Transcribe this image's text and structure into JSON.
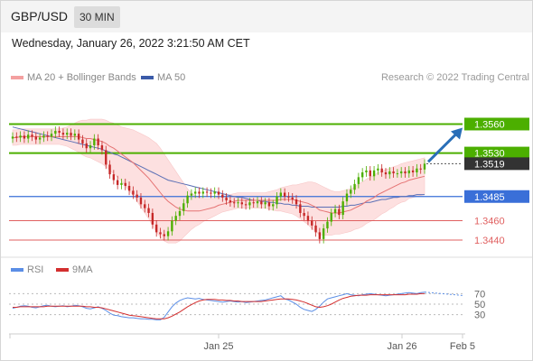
{
  "header": {
    "symbol": "GBP/USD",
    "timeframe": "30 MIN"
  },
  "datetime": "Wednesday, January 26, 2022 3:21:50 AM CET",
  "legend": {
    "ma20": "MA 20 + Bollinger Bands",
    "ma50": "MA 50",
    "attribution": "Research © 2022 Trading Central",
    "rsi": "RSI",
    "rsi_ma": "9MA"
  },
  "colors": {
    "ma20": "#e57373",
    "bollinger_fill": "#fde0e0",
    "ma50": "#5b6fb5",
    "resistance": "#4caf00",
    "support_blue": "#3a6fd8",
    "support_red": "#e06060",
    "current": "#333333",
    "up_candle": "#4caf00",
    "down_candle": "#c62828",
    "arrow": "#2a6fb8",
    "rsi": "#5b8ee6",
    "rsi_ma": "#d32f2f"
  },
  "chart_data": [
    {
      "type": "candlestick",
      "ylim": [
        1.3425,
        1.3595
      ],
      "levels": [
        {
          "label": "1.3560",
          "value": 1.356,
          "kind": "resistance"
        },
        {
          "label": "1.3530",
          "value": 1.353,
          "kind": "resistance"
        },
        {
          "label": "1.3519",
          "value": 1.3519,
          "kind": "current"
        },
        {
          "label": "1.3485",
          "value": 1.3485,
          "kind": "pivot"
        },
        {
          "label": "1.3460",
          "value": 1.346,
          "kind": "support"
        },
        {
          "label": "1.3440",
          "value": 1.344,
          "kind": "support"
        }
      ],
      "x_ticks": [
        "Jan 25",
        "Jan 26",
        "Feb 5"
      ],
      "closes": [
        1.3547,
        1.3546,
        1.3548,
        1.3545,
        1.3549,
        1.3547,
        1.3544,
        1.3546,
        1.3548,
        1.3547,
        1.355,
        1.3553,
        1.3551,
        1.3549,
        1.3551,
        1.3548,
        1.355,
        1.3544,
        1.354,
        1.3535,
        1.3538,
        1.3545,
        1.3538,
        1.3533,
        1.3518,
        1.3508,
        1.3502,
        1.3497,
        1.3499,
        1.3496,
        1.3491,
        1.3487,
        1.3484,
        1.3477,
        1.3473,
        1.3468,
        1.3456,
        1.3448,
        1.3446,
        1.3444,
        1.3449,
        1.346,
        1.3465,
        1.347,
        1.3478,
        1.3486,
        1.3488,
        1.349,
        1.3488,
        1.349,
        1.3489,
        1.3488,
        1.349,
        1.3487,
        1.3484,
        1.3481,
        1.3479,
        1.3478,
        1.3479,
        1.3477,
        1.3476,
        1.3479,
        1.3478,
        1.348,
        1.3477,
        1.3479,
        1.3475,
        1.3477,
        1.3485,
        1.3489,
        1.3485,
        1.3484,
        1.3482,
        1.3477,
        1.3468,
        1.3465,
        1.346,
        1.3455,
        1.3448,
        1.3441,
        1.3452,
        1.3459,
        1.3468,
        1.3472,
        1.3466,
        1.348,
        1.3488,
        1.3492,
        1.3498,
        1.3505,
        1.351,
        1.3512,
        1.3506,
        1.3512,
        1.3514,
        1.351,
        1.3508,
        1.3511,
        1.3509,
        1.3509,
        1.3511,
        1.3509,
        1.3512,
        1.351,
        1.3514,
        1.3513,
        1.3519
      ],
      "ma20": [
        1.3546,
        1.3546,
        1.3547,
        1.3547,
        1.3547,
        1.3547,
        1.3547,
        1.3547,
        1.3547,
        1.3547,
        1.3547,
        1.3547,
        1.3547,
        1.3547,
        1.3547,
        1.3547,
        1.3547,
        1.3547,
        1.3546,
        1.3545,
        1.3545,
        1.3544,
        1.3543,
        1.3542,
        1.354,
        1.3537,
        1.3535,
        1.3532,
        1.3529,
        1.3526,
        1.3523,
        1.352,
        1.3516,
        1.3512,
        1.3508,
        1.3504,
        1.3499,
        1.3494,
        1.3489,
        1.3484,
        1.348,
        1.3477,
        1.3474,
        1.3472,
        1.3471,
        1.347,
        1.347,
        1.347,
        1.347,
        1.3471,
        1.3472,
        1.3473,
        1.3474,
        1.3476,
        1.3477,
        1.3478,
        1.3479,
        1.348,
        1.3481,
        1.3481,
        1.3481,
        1.3481,
        1.3481,
        1.3481,
        1.3481,
        1.3481,
        1.3481,
        1.3481,
        1.3481,
        1.3482,
        1.3482,
        1.3482,
        1.3482,
        1.3481,
        1.348,
        1.3479,
        1.3478,
        1.3476,
        1.3474,
        1.3471,
        1.347,
        1.3469,
        1.3468,
        1.3468,
        1.3468,
        1.3469,
        1.347,
        1.3471,
        1.3473,
        1.3475,
        1.3477,
        1.348,
        1.3482,
        1.3484,
        1.3487,
        1.3489,
        1.3491,
        1.3493,
        1.3495,
        1.3497,
        1.3499,
        1.35,
        1.3502,
        1.3503,
        1.3504,
        1.3505,
        1.3506
      ],
      "ma50": [
        1.3557,
        1.3556,
        1.3555,
        1.3554,
        1.3553,
        1.3552,
        1.3551,
        1.355,
        1.3549,
        1.3548,
        1.3547,
        1.3546,
        1.3545,
        1.3544,
        1.3543,
        1.3542,
        1.3541,
        1.354,
        1.3539,
        1.3538,
        1.3537,
        1.3536,
        1.3535,
        1.3534,
        1.3532,
        1.3531,
        1.3529,
        1.3528,
        1.3526,
        1.3524,
        1.3522,
        1.352,
        1.3518,
        1.3516,
        1.3514,
        1.3512,
        1.351,
        1.3508,
        1.3506,
        1.3504,
        1.3502,
        1.3501,
        1.35,
        1.3499,
        1.3498,
        1.3497,
        1.3496,
        1.3495,
        1.3494,
        1.3493,
        1.3492,
        1.3491,
        1.349,
        1.3489,
        1.3488,
        1.3487,
        1.3486,
        1.3485,
        1.3484,
        1.3484,
        1.3483,
        1.3482,
        1.3481,
        1.3481,
        1.348,
        1.348,
        1.3479,
        1.3479,
        1.3478,
        1.3478,
        1.3477,
        1.3477,
        1.3476,
        1.3476,
        1.3475,
        1.3475,
        1.3475,
        1.3474,
        1.3474,
        1.3474,
        1.3474,
        1.3474,
        1.3474,
        1.3474,
        1.3474,
        1.3475,
        1.3475,
        1.3476,
        1.3476,
        1.3477,
        1.3478,
        1.3479,
        1.3479,
        1.348,
        1.3481,
        1.3482,
        1.3482,
        1.3483,
        1.3484,
        1.3484,
        1.3485,
        1.3485,
        1.3486,
        1.3486,
        1.3487,
        1.3487,
        1.3487
      ],
      "bollinger_width": [
        0.0008,
        0.0008,
        0.0008,
        0.0008,
        0.0008,
        0.0008,
        0.0008,
        0.0008,
        0.0008,
        0.0008,
        0.0008,
        0.0008,
        0.0008,
        0.0009,
        0.001,
        0.0012,
        0.0014,
        0.0016,
        0.0018,
        0.0019,
        0.002,
        0.0021,
        0.0022,
        0.0023,
        0.0024,
        0.0025,
        0.0026,
        0.0027,
        0.0028,
        0.003,
        0.0032,
        0.0034,
        0.0036,
        0.0038,
        0.004,
        0.0042,
        0.0044,
        0.0046,
        0.0046,
        0.0045,
        0.0043,
        0.004,
        0.0037,
        0.0033,
        0.0028,
        0.0023,
        0.0019,
        0.0016,
        0.0014,
        0.0012,
        0.0011,
        0.001,
        0.0009,
        0.0009,
        0.0008,
        0.0008,
        0.0008,
        0.0008,
        0.0008,
        0.0008,
        0.0008,
        0.0008,
        0.0008,
        0.0008,
        0.0008,
        0.0008,
        0.0009,
        0.001,
        0.0011,
        0.0012,
        0.0013,
        0.0014,
        0.0015,
        0.0016,
        0.0018,
        0.002,
        0.0022,
        0.0024,
        0.0025,
        0.0026,
        0.0025,
        0.0024,
        0.0023,
        0.0022,
        0.0022,
        0.0022,
        0.0022,
        0.0022,
        0.0022,
        0.0023,
        0.0023,
        0.0023,
        0.0023,
        0.0023,
        0.0023,
        0.0022,
        0.0022,
        0.0021,
        0.0021,
        0.002,
        0.002,
        0.002,
        0.0019,
        0.0019,
        0.0019,
        0.0019,
        0.0019
      ]
    },
    {
      "type": "line",
      "series": [
        {
          "name": "RSI",
          "values": [
            42,
            44,
            46,
            47,
            46,
            44,
            43,
            45,
            47,
            48,
            46,
            45,
            46,
            47,
            45,
            46,
            48,
            47,
            45,
            42,
            41,
            43,
            45,
            42,
            38,
            33,
            29,
            28,
            26,
            25,
            24,
            24,
            23,
            22,
            22,
            21,
            21,
            20,
            20,
            25,
            35,
            45,
            52,
            57,
            60,
            62,
            61,
            60,
            61,
            59,
            58,
            57,
            56,
            55,
            54,
            55,
            56,
            55,
            54,
            55,
            53,
            54,
            55,
            56,
            57,
            58,
            60,
            62,
            64,
            66,
            60,
            58,
            54,
            50,
            44,
            40,
            38,
            36,
            40,
            46,
            54,
            60,
            62,
            64,
            66,
            68,
            70,
            68,
            67,
            66,
            68,
            69,
            70,
            69,
            68,
            67,
            66,
            67,
            68,
            69,
            70,
            71,
            72,
            71,
            70,
            72,
            73
          ]
        },
        {
          "name": "9MA",
          "values": [
            44,
            44,
            45,
            45,
            45,
            45,
            45,
            45,
            45,
            46,
            46,
            46,
            46,
            46,
            46,
            46,
            46,
            46,
            46,
            45,
            45,
            44,
            44,
            43,
            41,
            39,
            37,
            35,
            33,
            31,
            29,
            28,
            27,
            26,
            25,
            24,
            23,
            22,
            22,
            22,
            24,
            27,
            31,
            35,
            40,
            45,
            49,
            53,
            56,
            58,
            59,
            59,
            59,
            58,
            58,
            57,
            57,
            56,
            56,
            55,
            55,
            55,
            55,
            55,
            55,
            56,
            57,
            58,
            59,
            60,
            60,
            60,
            59,
            58,
            56,
            54,
            51,
            48,
            45,
            44,
            45,
            47,
            50,
            54,
            58,
            61,
            63,
            65,
            66,
            67,
            67,
            67,
            68,
            68,
            68,
            68,
            68,
            68,
            68,
            68,
            68,
            68,
            69,
            69,
            69,
            70,
            70
          ]
        }
      ],
      "ylim": [
        0,
        100
      ],
      "y_ticks": [
        "70",
        "50",
        "30"
      ]
    }
  ]
}
